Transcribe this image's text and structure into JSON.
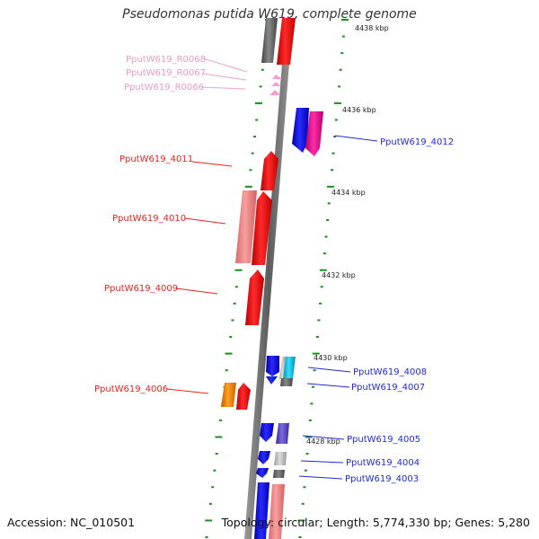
{
  "header": {
    "title": "Pseudomonas putida W619, complete genome"
  },
  "footer": {
    "accession": "Accession: NC_010501",
    "summary": "Topology: circular; Length: 5,774,330 bp; Genes: 5,280"
  },
  "colors": {
    "red": "#ff0000",
    "light_red": "#f08080",
    "blue": "#1a1aff",
    "magenta": "#ff1493",
    "cyan": "#00bcd4",
    "gray": "#777777",
    "light_gray": "#cccccc",
    "orange": "#ff8c00",
    "slate_blue": "#6a5acd",
    "pink_rna": "#ffaad4",
    "tick_green": "#1a8f1a"
  },
  "ticks": [
    {
      "label": "4438 kbp"
    },
    {
      "label": "4436 kbp"
    },
    {
      "label": "4434 kbp"
    },
    {
      "label": "4432 kbp"
    },
    {
      "label": "4430 kbp"
    },
    {
      "label": "4428 kbp"
    }
  ],
  "genes": [
    {
      "label": "PputW619_R0068",
      "color": "pink"
    },
    {
      "label": "PputW619_R0067",
      "color": "pink"
    },
    {
      "label": "PputW619_R0066",
      "color": "pink"
    },
    {
      "label": "PputW619_4012",
      "color": "blue"
    },
    {
      "label": "PputW619_4011",
      "color": "red"
    },
    {
      "label": "PputW619_4010",
      "color": "red"
    },
    {
      "label": "PputW619_4009",
      "color": "red"
    },
    {
      "label": "PputW619_4008",
      "color": "blue"
    },
    {
      "label": "PputW619_4007",
      "color": "blue"
    },
    {
      "label": "PputW619_4006",
      "color": "red"
    },
    {
      "label": "PputW619_4005",
      "color": "blue"
    },
    {
      "label": "PputW619_4004",
      "color": "blue"
    },
    {
      "label": "PputW619_4003",
      "color": "blue"
    }
  ]
}
